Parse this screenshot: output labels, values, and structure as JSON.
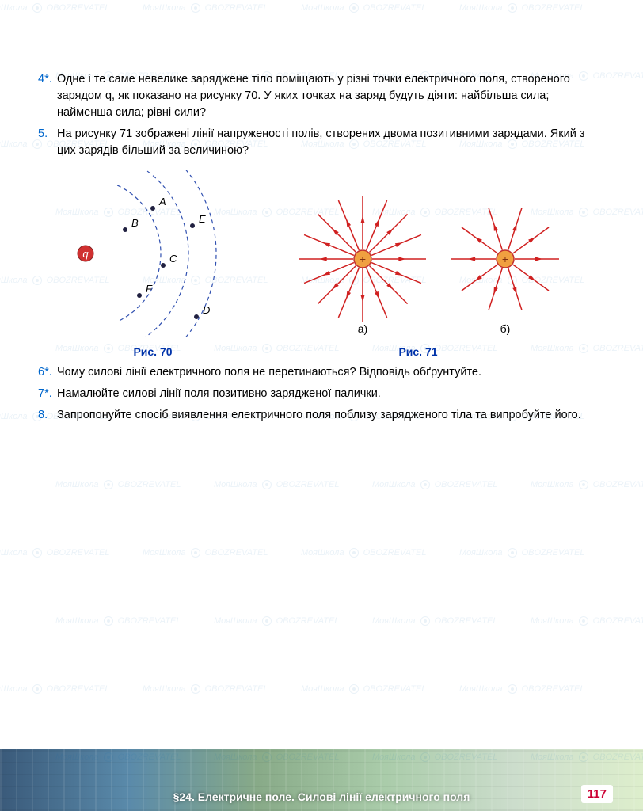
{
  "watermark": {
    "text1": "МояШкола",
    "text2": "OBOZREVATEL"
  },
  "questions": [
    {
      "num": "4*.",
      "text": "Одне і те саме невелике заряджене тіло поміщають у різні точки електричного поля, створеного зарядом q, як показано на рисунку 70. У яких точках на заряд будуть діяти: найбільша сила; найменша сила; рівні сили?"
    },
    {
      "num": "5.",
      "text": "На рисунку 71 зображені лінії напруженості полів, створених двома позитивними зарядами. Який з цих зарядів більший за величиною?"
    },
    {
      "num": "6*.",
      "text": "Чому силові лінії електричного поля не перетинаються? Відповідь обґрунтуйте."
    },
    {
      "num": "7*.",
      "text": "Намалюйте силові лінії поля позитивно зарядженої палички."
    },
    {
      "num": "8.",
      "text": "Запропонуйте спосіб виявлення електричного поля поблизу зарядженого тіла та випробуйте його."
    }
  ],
  "fig70": {
    "caption": "Рис. 70",
    "charge_label": "q",
    "points": [
      "A",
      "B",
      "C",
      "D",
      "E",
      "F"
    ],
    "charge_color": "#d03030",
    "arc_color": "#3050b0",
    "point_color": "#202040"
  },
  "fig71": {
    "caption": "Рис. 71",
    "sub_a": "а)",
    "sub_b": "б)",
    "line_color": "#d02020",
    "charge_fill": "#f0a040",
    "charge_stroke": "#c03030",
    "lines_a": 16,
    "lines_b": 10
  },
  "footer": {
    "section": "§24. Електричне поле. Силові лінії електричного поля",
    "page": "117"
  }
}
